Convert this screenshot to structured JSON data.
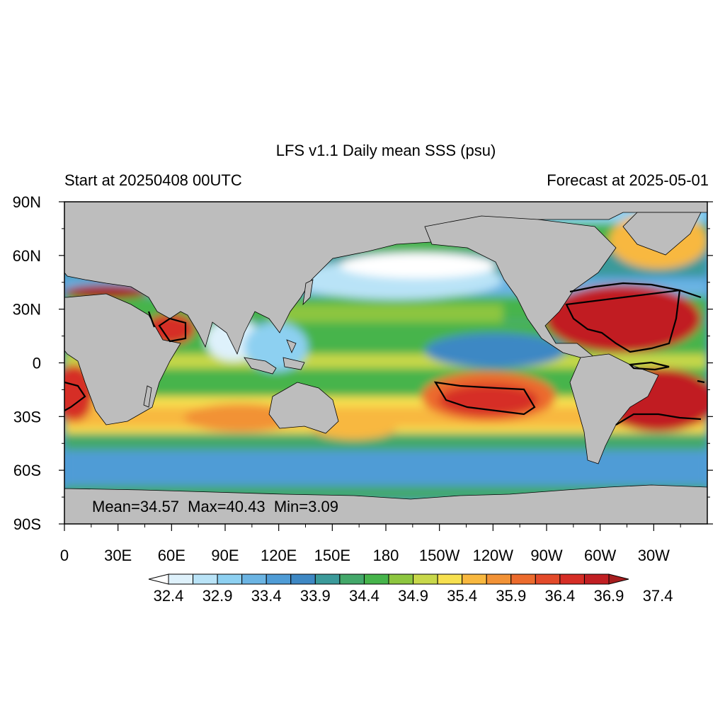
{
  "figure": {
    "title": "LFS v1.1 Daily mean SSS (psu)",
    "left_subtitle": "Start at 20250408 00UTC",
    "right_subtitle": "Forecast at 2025-05-01",
    "stats_text": "Mean=34.57  Max=40.43  Min=3.09"
  },
  "map": {
    "projection": "cylindrical equidistant",
    "lon_range": [
      0,
      360
    ],
    "lat_range": [
      -90,
      90
    ],
    "land_color": "#bdbdbd",
    "contour_line_color": "#000000",
    "lat_labels": [
      "90N",
      "60N",
      "30N",
      "0",
      "30S",
      "60S",
      "90S"
    ],
    "lon_labels": [
      "0",
      "30E",
      "60E",
      "90E",
      "120E",
      "150E",
      "180",
      "150W",
      "120W",
      "90W",
      "60W",
      "30W"
    ]
  },
  "colorbar": {
    "labels": [
      "32.4",
      "32.9",
      "33.4",
      "33.9",
      "34.4",
      "34.9",
      "35.4",
      "35.9",
      "36.4",
      "36.9",
      "37.4"
    ],
    "colors": [
      "#ffffff",
      "#def1fb",
      "#b9e3f7",
      "#8dd0f1",
      "#6bb4e3",
      "#4f9cd6",
      "#3e88c4",
      "#3b9a9a",
      "#43a86a",
      "#46b44b",
      "#8dc63f",
      "#c8d84a",
      "#f7e04f",
      "#f8b83f",
      "#f29236",
      "#ec6b2d",
      "#e34a2a",
      "#d62e26",
      "#c11f23",
      "#a61d1f"
    ]
  }
}
